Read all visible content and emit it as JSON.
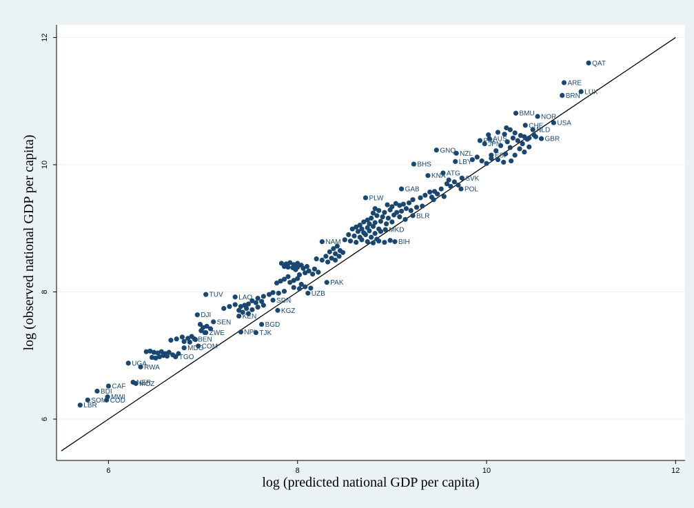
{
  "chart_data": {
    "type": "scatter",
    "title": "",
    "xlabel": "log (predicted national GDP per capita)",
    "ylabel": "log (observed national GDP per capita)",
    "xlim": [
      5.45,
      12.1
    ],
    "ylim": [
      5.35,
      12.2
    ],
    "xticks": [
      6,
      8,
      10,
      12
    ],
    "yticks": [
      6,
      8,
      10,
      12
    ],
    "grid": "horizontal",
    "reference_line": {
      "type": "45-degree",
      "from": [
        5.5,
        5.5
      ],
      "to": [
        12,
        12
      ]
    },
    "colors": {
      "background": "#eaf2f3",
      "plot_area": "#ffffff",
      "marker": "#1a476f",
      "label": "#1a476f",
      "grid": "#eaf2f3",
      "line": "#000000"
    },
    "labeled_points": [
      {
        "label": "QAT",
        "x": 11.08,
        "y": 11.6
      },
      {
        "label": "ARE",
        "x": 10.82,
        "y": 11.29
      },
      {
        "label": "LUX",
        "x": 11.0,
        "y": 11.15
      },
      {
        "label": "BRN",
        "x": 10.8,
        "y": 11.09
      },
      {
        "label": "BMU",
        "x": 10.31,
        "y": 10.81
      },
      {
        "label": "NOR",
        "x": 10.54,
        "y": 10.76
      },
      {
        "label": "USA",
        "x": 10.71,
        "y": 10.66
      },
      {
        "label": "CHE",
        "x": 10.41,
        "y": 10.62
      },
      {
        "label": "NLD",
        "x": 10.49,
        "y": 10.55
      },
      {
        "label": "AUS",
        "x": 10.03,
        "y": 10.41
      },
      {
        "label": "JPN",
        "x": 9.98,
        "y": 10.33
      },
      {
        "label": "GBR",
        "x": 10.58,
        "y": 10.41
      },
      {
        "label": "PRI",
        "x": 9.93,
        "y": 10.38
      },
      {
        "label": "GNQ",
        "x": 9.47,
        "y": 10.23
      },
      {
        "label": "NZL",
        "x": 9.68,
        "y": 10.18
      },
      {
        "label": "ESP",
        "x": 10.05,
        "y": 10.15
      },
      {
        "label": "LBY",
        "x": 9.67,
        "y": 10.05
      },
      {
        "label": "BHS",
        "x": 9.23,
        "y": 10.01
      },
      {
        "label": "ATG",
        "x": 9.54,
        "y": 9.87
      },
      {
        "label": "KNA",
        "x": 9.38,
        "y": 9.83
      },
      {
        "label": "SVK",
        "x": 9.74,
        "y": 9.79
      },
      {
        "label": "POL",
        "x": 9.73,
        "y": 9.62
      },
      {
        "label": "GAB",
        "x": 9.1,
        "y": 9.62
      },
      {
        "label": "PLW",
        "x": 8.72,
        "y": 9.48
      },
      {
        "label": "BLR",
        "x": 9.22,
        "y": 9.2
      },
      {
        "label": "MKD",
        "x": 8.93,
        "y": 8.98
      },
      {
        "label": "BIH",
        "x": 9.03,
        "y": 8.79
      },
      {
        "label": "NAM",
        "x": 8.26,
        "y": 8.79
      },
      {
        "label": "PAK",
        "x": 8.31,
        "y": 8.15
      },
      {
        "label": "UZB",
        "x": 8.11,
        "y": 7.98
      },
      {
        "label": "TUV",
        "x": 7.03,
        "y": 7.96
      },
      {
        "label": "LAO",
        "x": 7.34,
        "y": 7.92
      },
      {
        "label": "SDN",
        "x": 7.74,
        "y": 7.87
      },
      {
        "label": "KGZ",
        "x": 7.79,
        "y": 7.71
      },
      {
        "label": "KEN",
        "x": 7.38,
        "y": 7.62
      },
      {
        "label": "DJI",
        "x": 6.94,
        "y": 7.64
      },
      {
        "label": "SEN",
        "x": 7.11,
        "y": 7.53
      },
      {
        "label": "BGD",
        "x": 7.62,
        "y": 7.49
      },
      {
        "label": "NPL",
        "x": 7.4,
        "y": 7.37
      },
      {
        "label": "TJK",
        "x": 7.56,
        "y": 7.36
      },
      {
        "label": "ZWE",
        "x": 7.03,
        "y": 7.36
      },
      {
        "label": "BEN",
        "x": 6.91,
        "y": 7.26
      },
      {
        "label": "COM",
        "x": 6.95,
        "y": 7.15
      },
      {
        "label": "MDG",
        "x": 6.8,
        "y": 7.12
      },
      {
        "label": "TGO",
        "x": 6.71,
        "y": 6.98
      },
      {
        "label": "UGA",
        "x": 6.21,
        "y": 6.88
      },
      {
        "label": "RWA",
        "x": 6.34,
        "y": 6.82
      },
      {
        "label": "NER",
        "x": 6.26,
        "y": 6.58
      },
      {
        "label": "MOZ",
        "x": 6.29,
        "y": 6.56
      },
      {
        "label": "CAF",
        "x": 6.0,
        "y": 6.52
      },
      {
        "label": "BDI",
        "x": 5.88,
        "y": 6.44
      },
      {
        "label": "MWI",
        "x": 5.99,
        "y": 6.35
      },
      {
        "label": "COD",
        "x": 5.98,
        "y": 6.3
      },
      {
        "label": "SOM",
        "x": 5.78,
        "y": 6.3
      },
      {
        "label": "LBR",
        "x": 5.7,
        "y": 6.22
      }
    ],
    "unlabeled_points": [
      [
        10.21,
        10.58
      ],
      [
        10.25,
        10.55
      ],
      [
        10.12,
        10.51
      ],
      [
        10.19,
        10.48
      ],
      [
        10.02,
        10.47
      ],
      [
        10.3,
        10.5
      ],
      [
        10.36,
        10.46
      ],
      [
        10.4,
        10.44
      ],
      [
        10.45,
        10.42
      ],
      [
        10.5,
        10.47
      ],
      [
        10.28,
        10.42
      ],
      [
        10.33,
        10.38
      ],
      [
        10.22,
        10.36
      ],
      [
        10.38,
        10.33
      ],
      [
        10.43,
        10.4
      ],
      [
        10.52,
        10.44
      ],
      [
        10.15,
        10.3
      ],
      [
        10.25,
        10.27
      ],
      [
        10.35,
        10.25
      ],
      [
        10.1,
        10.22
      ],
      [
        10.2,
        10.17
      ],
      [
        10.3,
        10.15
      ],
      [
        10.4,
        10.2
      ],
      [
        10.45,
        10.28
      ],
      [
        10.05,
        10.1
      ],
      [
        10.12,
        10.08
      ],
      [
        10.18,
        10.04
      ],
      [
        10.26,
        10.06
      ],
      [
        9.9,
        10.12
      ],
      [
        9.95,
        10.06
      ],
      [
        10.0,
        10.02
      ],
      [
        9.85,
        10.08
      ],
      [
        9.6,
        9.76
      ],
      [
        9.66,
        9.73
      ],
      [
        9.58,
        9.7
      ],
      [
        9.62,
        9.66
      ],
      [
        9.7,
        9.68
      ],
      [
        9.52,
        9.62
      ],
      [
        9.45,
        9.58
      ],
      [
        9.48,
        9.54
      ],
      [
        9.4,
        9.57
      ],
      [
        9.35,
        9.52
      ],
      [
        9.42,
        9.49
      ],
      [
        9.3,
        9.48
      ],
      [
        9.55,
        9.5
      ],
      [
        9.44,
        9.45
      ],
      [
        9.22,
        9.45
      ],
      [
        9.18,
        9.4
      ],
      [
        9.12,
        9.38
      ],
      [
        9.08,
        9.36
      ],
      [
        9.04,
        9.39
      ],
      [
        9.0,
        9.34
      ],
      [
        8.95,
        9.37
      ],
      [
        9.26,
        9.33
      ],
      [
        9.32,
        9.35
      ],
      [
        9.15,
        9.31
      ],
      [
        9.2,
        9.28
      ],
      [
        9.1,
        9.27
      ],
      [
        9.05,
        9.25
      ],
      [
        8.98,
        9.29
      ],
      [
        8.92,
        9.25
      ],
      [
        8.86,
        9.28
      ],
      [
        8.82,
        9.31
      ],
      [
        8.8,
        9.24
      ],
      [
        8.84,
        9.2
      ],
      [
        8.9,
        9.18
      ],
      [
        8.96,
        9.16
      ],
      [
        9.02,
        9.21
      ],
      [
        9.08,
        9.18
      ],
      [
        9.14,
        9.14
      ],
      [
        8.78,
        9.16
      ],
      [
        8.74,
        9.13
      ],
      [
        8.7,
        9.1
      ],
      [
        8.76,
        9.07
      ],
      [
        8.82,
        9.09
      ],
      [
        8.88,
        9.11
      ],
      [
        8.94,
        9.07
      ],
      [
        9.0,
        9.1
      ],
      [
        8.66,
        9.05
      ],
      [
        8.62,
        9.02
      ],
      [
        8.68,
        8.99
      ],
      [
        8.74,
        9.01
      ],
      [
        8.8,
        9.03
      ],
      [
        8.86,
        8.99
      ],
      [
        8.58,
        8.99
      ],
      [
        8.64,
        8.95
      ],
      [
        8.7,
        8.93
      ],
      [
        8.76,
        8.96
      ],
      [
        8.82,
        8.92
      ],
      [
        8.88,
        8.95
      ],
      [
        8.54,
        8.9
      ],
      [
        8.6,
        8.88
      ],
      [
        8.66,
        8.86
      ],
      [
        8.72,
        8.9
      ],
      [
        8.78,
        8.86
      ],
      [
        8.84,
        8.83
      ],
      [
        8.5,
        8.82
      ],
      [
        8.56,
        8.8
      ],
      [
        8.62,
        8.78
      ],
      [
        8.68,
        8.82
      ],
      [
        8.74,
        8.79
      ],
      [
        8.8,
        8.77
      ],
      [
        8.86,
        8.8
      ],
      [
        8.92,
        8.78
      ],
      [
        8.98,
        8.81
      ],
      [
        8.42,
        8.72
      ],
      [
        8.38,
        8.68
      ],
      [
        8.45,
        8.65
      ],
      [
        8.34,
        8.63
      ],
      [
        8.4,
        8.6
      ],
      [
        8.48,
        8.62
      ],
      [
        8.3,
        8.56
      ],
      [
        8.36,
        8.53
      ],
      [
        8.44,
        8.56
      ],
      [
        8.26,
        8.5
      ],
      [
        8.32,
        8.47
      ],
      [
        8.4,
        8.5
      ],
      [
        8.2,
        8.52
      ],
      [
        7.83,
        8.45
      ],
      [
        7.88,
        8.44
      ],
      [
        7.92,
        8.46
      ],
      [
        7.96,
        8.43
      ],
      [
        8.0,
        8.45
      ],
      [
        8.04,
        8.42
      ],
      [
        7.86,
        8.4
      ],
      [
        7.9,
        8.39
      ],
      [
        7.95,
        8.38
      ],
      [
        8.0,
        8.39
      ],
      [
        8.06,
        8.37
      ],
      [
        8.1,
        8.4
      ],
      [
        7.98,
        8.35
      ],
      [
        8.12,
        8.33
      ],
      [
        8.18,
        8.36
      ],
      [
        8.08,
        8.3
      ],
      [
        8.16,
        8.28
      ],
      [
        8.22,
        8.31
      ],
      [
        8.02,
        8.27
      ],
      [
        7.9,
        8.24
      ],
      [
        7.86,
        8.2
      ],
      [
        7.82,
        8.17
      ],
      [
        7.78,
        8.14
      ],
      [
        7.92,
        8.15
      ],
      [
        7.96,
        8.18
      ],
      [
        8.0,
        8.21
      ],
      [
        8.04,
        8.12
      ],
      [
        8.08,
        8.08
      ],
      [
        8.14,
        8.06
      ],
      [
        8.02,
        8.05
      ],
      [
        7.96,
        8.07
      ],
      [
        7.86,
        8.01
      ],
      [
        7.8,
        7.98
      ],
      [
        7.74,
        7.99
      ],
      [
        7.7,
        7.96
      ],
      [
        7.64,
        7.93
      ],
      [
        7.58,
        7.9
      ],
      [
        7.52,
        7.86
      ],
      [
        7.56,
        7.83
      ],
      [
        7.62,
        7.85
      ],
      [
        7.48,
        7.81
      ],
      [
        7.44,
        7.79
      ],
      [
        7.4,
        7.77
      ],
      [
        7.34,
        7.8
      ],
      [
        7.28,
        7.77
      ],
      [
        7.22,
        7.74
      ],
      [
        7.46,
        7.74
      ],
      [
        7.52,
        7.72
      ],
      [
        7.58,
        7.76
      ],
      [
        7.64,
        7.79
      ],
      [
        7.38,
        7.71
      ],
      [
        7.42,
        7.68
      ],
      [
        7.48,
        7.66
      ],
      [
        6.97,
        7.49
      ],
      [
        7.0,
        7.44
      ],
      [
        7.04,
        7.46
      ],
      [
        7.08,
        7.42
      ],
      [
        6.98,
        7.39
      ],
      [
        7.02,
        7.36
      ],
      [
        6.88,
        7.3
      ],
      [
        6.84,
        7.27
      ],
      [
        6.78,
        7.29
      ],
      [
        6.72,
        7.26
      ],
      [
        6.66,
        7.24
      ],
      [
        6.8,
        7.22
      ],
      [
        6.86,
        7.21
      ],
      [
        6.92,
        7.25
      ],
      [
        6.44,
        7.07
      ],
      [
        6.4,
        7.06
      ],
      [
        6.48,
        7.05
      ],
      [
        6.52,
        7.04
      ],
      [
        6.56,
        7.06
      ],
      [
        6.6,
        7.03
      ],
      [
        6.64,
        7.05
      ],
      [
        6.58,
        7.0
      ],
      [
        6.54,
        6.98
      ],
      [
        6.5,
        6.96
      ],
      [
        6.46,
        6.97
      ],
      [
        6.62,
        6.99
      ],
      [
        6.68,
        7.01
      ],
      [
        6.74,
        7.03
      ]
    ]
  }
}
